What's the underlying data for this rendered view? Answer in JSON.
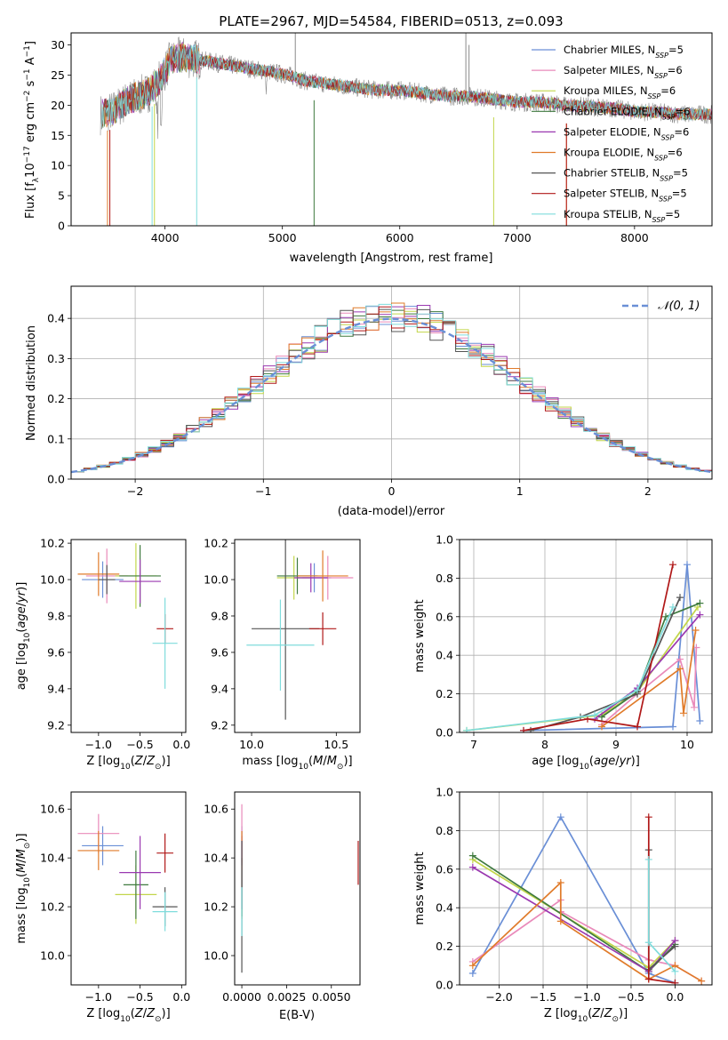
{
  "figure_title": "PLATE=2967, MJD=54584, FIBERID=0513, z=0.093",
  "colors": {
    "Chabrier MILES": "#6a8fd6",
    "Salpeter MILES": "#e98aba",
    "Kroupa MILES": "#c2d64a",
    "Chabrier ELODIE": "#3f7a3f",
    "Salpeter ELODIE": "#9a38b0",
    "Kroupa ELODIE": "#e07b2a",
    "Chabrier STELIB": "#555555",
    "Salpeter STELIB": "#b01818",
    "Kroupa STELIB": "#7fdcdc"
  },
  "chart_data": [
    {
      "id": "spectrum",
      "type": "line",
      "title": "PLATE=2967, MJD=54584, FIBERID=0513, z=0.093",
      "xlabel": "wavelength [Angstrom, rest frame]",
      "ylabel": "Flux [f_λ 10^-17 erg cm^-2 s^-1 A^-1]",
      "xlim": [
        3200,
        8660
      ],
      "ylim": [
        0,
        32
      ],
      "xticks": [
        4000,
        5000,
        6000,
        7000,
        8000
      ],
      "yticks": [
        0,
        5,
        10,
        15,
        20,
        25,
        30
      ],
      "legend_position": "top-right",
      "grid": false,
      "continuum_x": [
        3450,
        3550,
        3700,
        3850,
        3950,
        4050,
        4150,
        4300,
        4450,
        4600,
        4750,
        4900,
        5050,
        5200,
        5400,
        5600,
        5800,
        6000,
        6200,
        6400,
        6600,
        6800,
        7000,
        7200,
        7400,
        7600,
        7800,
        8000,
        8200,
        8400,
        8660
      ],
      "continuum_y": [
        18.5,
        19.0,
        21.0,
        22.0,
        24.0,
        27.5,
        28.0,
        27.5,
        27.0,
        26.5,
        26.0,
        25.5,
        25.0,
        24.0,
        23.5,
        23.0,
        22.5,
        22.5,
        22.0,
        21.5,
        21.5,
        21.0,
        20.5,
        20.5,
        20.0,
        19.8,
        19.5,
        19.0,
        18.8,
        18.5,
        18.5
      ],
      "series": [
        {
          "name": "Chabrier MILES",
          "label": "Chabrier MILES, N",
          "ssp": "=5"
        },
        {
          "name": "Salpeter MILES",
          "label": "Salpeter MILES, N",
          "ssp": "=6"
        },
        {
          "name": "Kroupa MILES",
          "label": "Kroupa MILES, N",
          "ssp": "=6"
        },
        {
          "name": "Chabrier ELODIE",
          "label": "Chabrier ELODIE, N",
          "ssp": "=6"
        },
        {
          "name": "Salpeter ELODIE",
          "label": "Salpeter ELODIE, N",
          "ssp": "=6"
        },
        {
          "name": "Kroupa ELODIE",
          "label": "Kroupa ELODIE, N",
          "ssp": "=6"
        },
        {
          "name": "Chabrier STELIB",
          "label": "Chabrier STELIB, N",
          "ssp": "=5"
        },
        {
          "name": "Salpeter STELIB",
          "label": "Salpeter STELIB, N",
          "ssp": "=5"
        },
        {
          "name": "Kroupa STELIB",
          "label": "Kroupa STELIB, N",
          "ssp": "=5"
        }
      ],
      "ssp_subscript": "SSP"
    },
    {
      "id": "residuals",
      "type": "bar",
      "xlabel": "(data-model)/error",
      "ylabel": "Normed distribution",
      "xlim": [
        -2.5,
        2.5
      ],
      "ylim": [
        0,
        0.48
      ],
      "xticks": [
        -2,
        -1,
        0,
        1,
        2
      ],
      "yticks": [
        0.0,
        0.1,
        0.2,
        0.3,
        0.4
      ],
      "grid": true,
      "legend_position": "top-right",
      "gaussian_label": "𝒩(0, 1)",
      "bin_width": 0.1,
      "series_names": [
        "Chabrier MILES",
        "Salpeter MILES",
        "Kroupa MILES",
        "Chabrier ELODIE",
        "Salpeter ELODIE",
        "Kroupa ELODIE",
        "Chabrier STELIB",
        "Salpeter STELIB",
        "Kroupa STELIB"
      ]
    },
    {
      "id": "age_vs_Z",
      "type": "scatter",
      "xlabel": "Z [log10(Z/Z⊙)]",
      "ylabel": "age [log10(age/yr)]",
      "xlim": [
        -1.33,
        0.05
      ],
      "ylim": [
        9.16,
        10.22
      ],
      "xticks": [
        -1.0,
        -0.5,
        0.0
      ],
      "yticks": [
        9.2,
        9.4,
        9.6,
        9.8,
        10.0,
        10.2
      ],
      "points": [
        {
          "name": "Chabrier MILES",
          "x": -0.95,
          "xerr": 0.25,
          "y": 10.0,
          "yerr": 0.1
        },
        {
          "name": "Salpeter MILES",
          "x": -0.9,
          "xerr": 0.25,
          "y": 10.02,
          "yerr": 0.15
        },
        {
          "name": "Kroupa MILES",
          "x": -0.55,
          "xerr": 0.25,
          "y": 10.02,
          "yerr": 0.18
        },
        {
          "name": "Chabrier ELODIE",
          "x": -0.5,
          "xerr": 0.25,
          "y": 10.02,
          "yerr": 0.17
        },
        {
          "name": "Salpeter ELODIE",
          "x": -0.5,
          "xerr": 0.25,
          "y": 9.99,
          "yerr": 0.12
        },
        {
          "name": "Kroupa ELODIE",
          "x": -1.0,
          "xerr": 0.25,
          "y": 10.03,
          "yerr": 0.12
        },
        {
          "name": "Chabrier STELIB",
          "x": -0.9,
          "xerr": 0.1,
          "y": 10.0,
          "yerr": 0.08
        },
        {
          "name": "Salpeter STELIB",
          "x": -0.2,
          "xerr": 0.1,
          "y": 9.73,
          "yerr": 0.08
        },
        {
          "name": "Kroupa STELIB",
          "x": -0.2,
          "xerr": 0.15,
          "y": 9.65,
          "yerr": 0.25
        }
      ]
    },
    {
      "id": "age_vs_mass",
      "type": "scatter",
      "xlabel": "mass [log10(M/M⊙)]",
      "ylabel": "",
      "xlim": [
        9.9,
        10.64
      ],
      "ylim": [
        9.16,
        10.22
      ],
      "xticks": [
        10.0,
        10.5
      ],
      "yticks": [
        9.2,
        9.4,
        9.6,
        9.8,
        10.0,
        10.2
      ],
      "points": [
        {
          "name": "Chabrier MILES",
          "x": 10.37,
          "xerr": 0.1,
          "y": 10.01,
          "yerr": 0.08
        },
        {
          "name": "Salpeter MILES",
          "x": 10.45,
          "xerr": 0.15,
          "y": 10.01,
          "yerr": 0.12
        },
        {
          "name": "Kroupa MILES",
          "x": 10.25,
          "xerr": 0.1,
          "y": 10.01,
          "yerr": 0.12
        },
        {
          "name": "Chabrier ELODIE",
          "x": 10.27,
          "xerr": 0.12,
          "y": 10.02,
          "yerr": 0.1
        },
        {
          "name": "Salpeter ELODIE",
          "x": 10.35,
          "xerr": 0.1,
          "y": 10.01,
          "yerr": 0.08
        },
        {
          "name": "Kroupa ELODIE",
          "x": 10.42,
          "xerr": 0.15,
          "y": 10.02,
          "yerr": 0.14
        },
        {
          "name": "Chabrier STELIB",
          "x": 10.2,
          "xerr": 0.2,
          "y": 9.73,
          "yerr": 0.5
        },
        {
          "name": "Salpeter STELIB",
          "x": 10.42,
          "xerr": 0.08,
          "y": 9.73,
          "yerr": 0.09
        },
        {
          "name": "Kroupa STELIB",
          "x": 10.17,
          "xerr": 0.2,
          "y": 9.64,
          "yerr": 0.25
        }
      ]
    },
    {
      "id": "mass_weight_vs_age",
      "type": "line",
      "xlabel": "age [log10(age/yr)]",
      "ylabel": "mass weight",
      "xlim": [
        6.8,
        10.35
      ],
      "ylim": [
        0,
        1.0
      ],
      "xticks": [
        7,
        8,
        9,
        10
      ],
      "yticks": [
        0.0,
        0.2,
        0.4,
        0.6,
        0.8,
        1.0
      ],
      "grid": true,
      "series": [
        {
          "name": "Chabrier MILES",
          "x": [
            7.7,
            9.8,
            10.0,
            10.18
          ],
          "y": [
            0.01,
            0.03,
            0.87,
            0.06
          ]
        },
        {
          "name": "Salpeter MILES",
          "x": [
            8.8,
            9.3,
            9.9,
            10.1,
            10.13
          ],
          "y": [
            0.04,
            0.2,
            0.38,
            0.13,
            0.44
          ]
        },
        {
          "name": "Kroupa MILES",
          "x": [
            6.9,
            8.8,
            9.3,
            10.15
          ],
          "y": [
            0.01,
            0.09,
            0.21,
            0.65
          ]
        },
        {
          "name": "Chabrier ELODIE",
          "x": [
            8.8,
            9.3,
            9.7,
            10.18
          ],
          "y": [
            0.08,
            0.21,
            0.6,
            0.67
          ]
        },
        {
          "name": "Salpeter ELODIE",
          "x": [
            8.7,
            9.3,
            10.18
          ],
          "y": [
            0.07,
            0.23,
            0.61
          ]
        },
        {
          "name": "Kroupa ELODIE",
          "x": [
            8.8,
            9.9,
            9.95,
            10.12
          ],
          "y": [
            0.03,
            0.33,
            0.1,
            0.53
          ]
        },
        {
          "name": "Chabrier STELIB",
          "x": [
            7.8,
            8.5,
            9.3,
            9.9
          ],
          "y": [
            0.01,
            0.08,
            0.2,
            0.7
          ]
        },
        {
          "name": "Salpeter STELIB",
          "x": [
            7.7,
            8.6,
            9.3,
            9.8
          ],
          "y": [
            0.01,
            0.07,
            0.03,
            0.87
          ]
        },
        {
          "name": "Kroupa STELIB",
          "x": [
            6.9,
            8.7,
            9.3,
            9.8
          ],
          "y": [
            0.01,
            0.09,
            0.22,
            0.65
          ]
        }
      ]
    },
    {
      "id": "mass_vs_Z",
      "type": "scatter",
      "xlabel": "Z [log10(Z/Z⊙)]",
      "ylabel": "mass [log10(M/M⊙)]",
      "xlim": [
        -1.33,
        0.05
      ],
      "ylim": [
        9.88,
        10.67
      ],
      "xticks": [
        -1.0,
        -0.5,
        0.0
      ],
      "yticks": [
        10.0,
        10.2,
        10.4,
        10.6
      ],
      "points": [
        {
          "name": "Chabrier MILES",
          "x": -0.95,
          "xerr": 0.25,
          "y": 10.45,
          "yerr": 0.08
        },
        {
          "name": "Salpeter MILES",
          "x": -1.0,
          "xerr": 0.25,
          "y": 10.5,
          "yerr": 0.08
        },
        {
          "name": "Kroupa MILES",
          "x": -0.55,
          "xerr": 0.25,
          "y": 10.25,
          "yerr": 0.12
        },
        {
          "name": "Chabrier ELODIE",
          "x": -0.55,
          "xerr": 0.15,
          "y": 10.29,
          "yerr": 0.14
        },
        {
          "name": "Salpeter ELODIE",
          "x": -0.5,
          "xerr": 0.25,
          "y": 10.34,
          "yerr": 0.15
        },
        {
          "name": "Kroupa ELODIE",
          "x": -1.0,
          "xerr": 0.25,
          "y": 10.43,
          "yerr": 0.08
        },
        {
          "name": "Chabrier STELIB",
          "x": -0.2,
          "xerr": 0.15,
          "y": 10.2,
          "yerr": 0.08
        },
        {
          "name": "Salpeter STELIB",
          "x": -0.2,
          "xerr": 0.1,
          "y": 10.42,
          "yerr": 0.08
        },
        {
          "name": "Kroupa STELIB",
          "x": -0.2,
          "xerr": 0.15,
          "y": 10.18,
          "yerr": 0.08
        }
      ]
    },
    {
      "id": "mass_vs_ebv",
      "type": "scatter",
      "xlabel": "E(B-V)",
      "ylabel": "",
      "xlim": [
        -0.0004,
        0.0066
      ],
      "ylim": [
        9.88,
        10.67
      ],
      "xticks": [
        0.0,
        0.0025,
        0.005
      ],
      "xticklabels": [
        "0.0000",
        "0.0025",
        "0.0050"
      ],
      "yticks": [
        10.0,
        10.2,
        10.4,
        10.6
      ],
      "points": [
        {
          "name": "Chabrier MILES",
          "x": 0.0,
          "y": 10.45,
          "yerr": 0.08
        },
        {
          "name": "Salpeter MILES",
          "x": 0.0,
          "y": 10.5,
          "yerr": 0.12
        },
        {
          "name": "Kroupa MILES",
          "x": 0.0,
          "y": 10.25,
          "yerr": 0.1
        },
        {
          "name": "Chabrier ELODIE",
          "x": 0.0,
          "y": 10.28,
          "yerr": 0.12
        },
        {
          "name": "Salpeter ELODIE",
          "x": 0.0,
          "y": 10.34,
          "yerr": 0.15
        },
        {
          "name": "Kroupa ELODIE",
          "x": 0.0,
          "y": 10.43,
          "yerr": 0.08
        },
        {
          "name": "Chabrier STELIB",
          "x": 0.0,
          "y": 10.2,
          "yerr": 0.27
        },
        {
          "name": "Salpeter STELIB",
          "x": 0.0065,
          "y": 10.38,
          "yerr": 0.09
        },
        {
          "name": "Kroupa STELIB",
          "x": 0.0,
          "y": 10.18,
          "yerr": 0.1
        }
      ]
    },
    {
      "id": "mass_weight_vs_Z",
      "type": "line",
      "xlabel": "Z [log10(Z/Z⊙)]",
      "ylabel": "mass weight",
      "xlim": [
        -2.45,
        0.42
      ],
      "ylim": [
        0,
        1.0
      ],
      "xticks": [
        -2.0,
        -1.5,
        -1.0,
        -0.5,
        0.0
      ],
      "yticks": [
        0.0,
        0.2,
        0.4,
        0.6,
        0.8,
        1.0
      ],
      "grid": true,
      "series": [
        {
          "name": "Chabrier MILES",
          "x": [
            -2.3,
            -1.3,
            -0.3,
            0.0
          ],
          "y": [
            0.06,
            0.87,
            0.06,
            0.01
          ]
        },
        {
          "name": "Salpeter MILES",
          "x": [
            -2.3,
            -1.3,
            -1.3,
            -0.3,
            0.0,
            0.3
          ],
          "y": [
            0.12,
            0.44,
            0.38,
            0.13,
            0.1,
            0.02
          ]
        },
        {
          "name": "Kroupa MILES",
          "x": [
            -2.3,
            -0.3,
            0.0
          ],
          "y": [
            0.65,
            0.09,
            0.23
          ]
        },
        {
          "name": "Chabrier ELODIE",
          "x": [
            -2.3,
            -0.3,
            0.0
          ],
          "y": [
            0.67,
            0.07,
            0.21
          ]
        },
        {
          "name": "Salpeter ELODIE",
          "x": [
            -2.3,
            -0.3,
            0.0
          ],
          "y": [
            0.61,
            0.07,
            0.23
          ]
        },
        {
          "name": "Kroupa ELODIE",
          "x": [
            -2.3,
            -1.3,
            -1.3,
            -0.3,
            0.0,
            0.3
          ],
          "y": [
            0.1,
            0.53,
            0.33,
            0.03,
            0.1,
            0.02
          ]
        },
        {
          "name": "Chabrier STELIB",
          "x": [
            -0.3,
            -0.3,
            0.0
          ],
          "y": [
            0.7,
            0.08,
            0.2
          ]
        },
        {
          "name": "Salpeter STELIB",
          "x": [
            -0.3,
            -0.3,
            0.0
          ],
          "y": [
            0.87,
            0.03,
            0.01
          ]
        },
        {
          "name": "Kroupa STELIB",
          "x": [
            -0.3,
            -0.3,
            0.0
          ],
          "y": [
            0.65,
            0.22,
            0.07
          ]
        }
      ]
    }
  ]
}
